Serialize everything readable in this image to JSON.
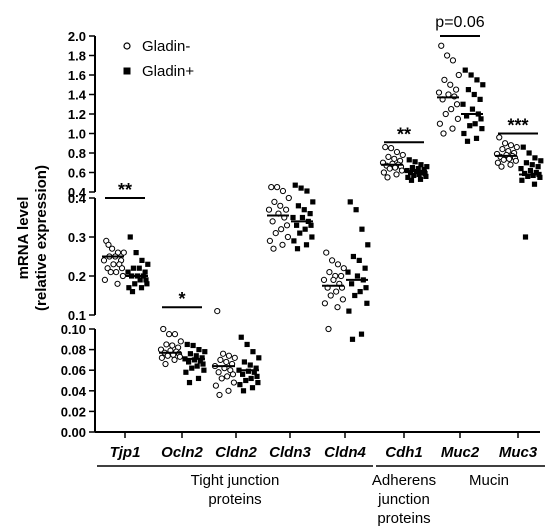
{
  "chart_data": {
    "type": "scatter",
    "ylabel_line1": "mRNA level",
    "ylabel_line2": "(relative expression)",
    "legend": [
      {
        "label": "Gladin-",
        "marker": "open-circle"
      },
      {
        "label": "Gladin+",
        "marker": "filled-square"
      }
    ],
    "y_segments": [
      {
        "range": [
          0.0,
          0.1
        ],
        "ticks": [
          "0.00",
          "0.02",
          "0.04",
          "0.06",
          "0.08",
          "0.10"
        ]
      },
      {
        "range": [
          0.1,
          0.4
        ],
        "ticks": [
          "0.1",
          "0.2",
          "0.3",
          "0.4"
        ]
      },
      {
        "range": [
          0.4,
          2.0
        ],
        "ticks": [
          "0.4",
          "0.6",
          "0.8",
          "1.0",
          "1.2",
          "1.4",
          "1.6",
          "1.8",
          "2.0"
        ]
      }
    ],
    "categories": [
      "Tjp1",
      "Ocln2",
      "Cldn2",
      "Cldn3",
      "Cldn4",
      "Cdh1",
      "Muc2",
      "Muc3"
    ],
    "series": [
      {
        "name": "Gladin-",
        "marker": "open-circle",
        "points": [
          [
            0.29,
            0.27,
            0.26,
            0.26,
            0.25,
            0.25,
            0.24,
            0.24,
            0.23,
            0.23,
            0.22,
            0.22,
            0.21,
            0.21,
            0.2,
            0.19,
            0.18,
            0.28
          ],
          [
            0.1,
            0.095,
            0.095,
            0.088,
            0.085,
            0.084,
            0.082,
            0.08,
            0.079,
            0.078,
            0.077,
            0.076,
            0.075,
            0.074,
            0.073,
            0.072,
            0.07,
            0.066
          ],
          [
            0.11,
            0.076,
            0.074,
            0.072,
            0.07,
            0.068,
            0.066,
            0.064,
            0.062,
            0.06,
            0.058,
            0.056,
            0.054,
            0.052,
            0.048,
            0.045,
            0.04,
            0.036
          ],
          [
            0.45,
            0.45,
            0.41,
            0.4,
            0.39,
            0.38,
            0.37,
            0.37,
            0.36,
            0.35,
            0.34,
            0.33,
            0.32,
            0.31,
            0.3,
            0.29,
            0.28,
            0.27
          ],
          [
            0.26,
            0.24,
            0.23,
            0.22,
            0.21,
            0.2,
            0.2,
            0.19,
            0.19,
            0.18,
            0.17,
            0.17,
            0.16,
            0.15,
            0.14,
            0.13,
            0.12,
            0.1
          ],
          [
            0.86,
            0.85,
            0.81,
            0.78,
            0.76,
            0.74,
            0.72,
            0.7,
            0.69,
            0.68,
            0.67,
            0.66,
            0.65,
            0.64,
            0.62,
            0.6,
            0.58,
            0.55
          ],
          [
            1.9,
            1.8,
            1.75,
            1.6,
            1.55,
            1.5,
            1.45,
            1.42,
            1.4,
            1.38,
            1.35,
            1.3,
            1.25,
            1.2,
            1.15,
            1.1,
            1.05,
            1.0
          ],
          [
            0.96,
            0.9,
            0.88,
            0.86,
            0.84,
            0.82,
            0.8,
            0.79,
            0.78,
            0.77,
            0.76,
            0.75,
            0.74,
            0.73,
            0.72,
            0.7,
            0.68,
            0.66
          ]
        ]
      },
      {
        "name": "Gladin+",
        "marker": "filled-square",
        "points": [
          [
            0.3,
            0.26,
            0.24,
            0.23,
            0.22,
            0.22,
            0.21,
            0.21,
            0.2,
            0.2,
            0.2,
            0.19,
            0.19,
            0.18,
            0.18,
            0.17,
            0.17,
            0.16
          ],
          [
            0.085,
            0.084,
            0.08,
            0.078,
            0.076,
            0.074,
            0.072,
            0.071,
            0.07,
            0.069,
            0.068,
            0.066,
            0.064,
            0.062,
            0.06,
            0.058,
            0.052,
            0.048
          ],
          [
            0.092,
            0.085,
            0.078,
            0.072,
            0.068,
            0.065,
            0.062,
            0.06,
            0.059,
            0.058,
            0.056,
            0.054,
            0.052,
            0.05,
            0.048,
            0.046,
            0.043,
            0.04
          ],
          [
            0.47,
            0.44,
            0.41,
            0.39,
            0.38,
            0.37,
            0.36,
            0.35,
            0.35,
            0.34,
            0.33,
            0.33,
            0.32,
            0.31,
            0.3,
            0.29,
            0.28,
            0.27
          ],
          [
            0.39,
            0.37,
            0.32,
            0.28,
            0.25,
            0.24,
            0.22,
            0.21,
            0.2,
            0.19,
            0.18,
            0.17,
            0.16,
            0.15,
            0.13,
            0.11,
            0.095,
            0.09
          ],
          [
            0.73,
            0.71,
            0.68,
            0.66,
            0.65,
            0.64,
            0.63,
            0.62,
            0.61,
            0.6,
            0.6,
            0.59,
            0.58,
            0.57,
            0.56,
            0.55,
            0.53,
            0.52
          ],
          [
            1.65,
            1.6,
            1.55,
            1.5,
            1.45,
            1.4,
            1.35,
            1.3,
            1.25,
            1.2,
            1.18,
            1.15,
            1.1,
            1.08,
            1.05,
            1.0,
            0.95,
            0.92
          ],
          [
            0.86,
            0.8,
            0.75,
            0.72,
            0.7,
            0.68,
            0.66,
            0.64,
            0.62,
            0.6,
            0.59,
            0.58,
            0.57,
            0.56,
            0.55,
            0.52,
            0.48,
            0.3
          ]
        ]
      }
    ],
    "medians": [
      [
        0.25,
        0.2
      ],
      [
        0.077,
        0.071
      ],
      [
        0.064,
        0.06
      ],
      [
        0.355,
        0.34
      ],
      [
        0.175,
        0.19
      ],
      [
        0.68,
        0.615
      ],
      [
        1.37,
        1.2
      ],
      [
        0.77,
        0.58
      ]
    ],
    "significance": [
      {
        "category_index": 0,
        "label": "**",
        "level": 0.4
      },
      {
        "category_index": 1,
        "label": "*",
        "level": 0.12
      },
      {
        "category_index": 5,
        "label": "**",
        "level": 0.91
      },
      {
        "category_index": 6,
        "label": "p=0.06",
        "level": 2.0
      },
      {
        "category_index": 7,
        "label": "***",
        "level": 1.0
      }
    ],
    "groups": [
      {
        "lines": [
          "Tight junction",
          "proteins"
        ],
        "from": 0,
        "to": 4
      },
      {
        "lines": [
          "Adherens",
          "junction",
          "proteins"
        ],
        "from": 5,
        "to": 5
      },
      {
        "lines": [
          "Mucin"
        ],
        "from": 6,
        "to": 7
      }
    ],
    "grid": false
  }
}
